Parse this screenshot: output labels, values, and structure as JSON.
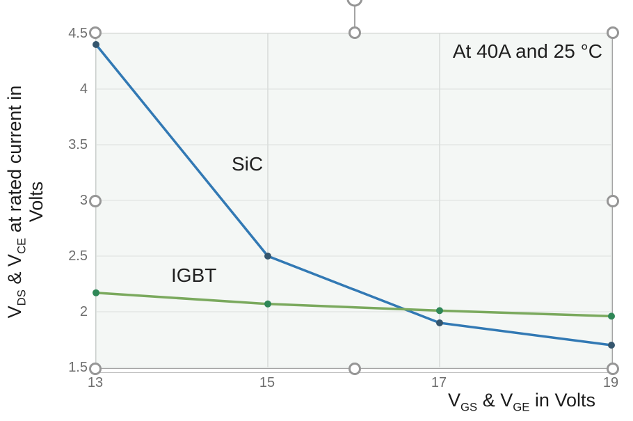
{
  "chart_data": {
    "type": "line",
    "annotation": "At 40A and 25 °C",
    "x": [
      13,
      15,
      17,
      19
    ],
    "series": [
      {
        "name": "SiC",
        "values": [
          4.4,
          2.5,
          1.9,
          1.7
        ],
        "color": "#3279b4",
        "marker_color": "#35566e"
      },
      {
        "name": "IGBT",
        "values": [
          2.17,
          2.07,
          2.01,
          1.96
        ],
        "color": "#7aa95d",
        "marker_color": "#2f8757"
      }
    ],
    "xlim": [
      13,
      19
    ],
    "ylim": [
      1.5,
      4.5
    ],
    "xticks": [
      13,
      15,
      17,
      19
    ],
    "yticks": [
      1.5,
      2,
      2.5,
      3,
      3.5,
      4,
      4.5
    ],
    "xlabel_rich": [
      {
        "t": "V"
      },
      {
        "sub": "GS"
      },
      {
        "t": " & V"
      },
      {
        "sub": "GE"
      },
      {
        "t": " in Volts"
      }
    ],
    "ylabel_rich": [
      {
        "t": "V"
      },
      {
        "sub": "DS"
      },
      {
        "t": " & V"
      },
      {
        "sub": "CE"
      },
      {
        "t": " at rated current in"
      },
      {
        "br": true
      },
      {
        "t": "Volts"
      }
    ],
    "grid": true,
    "legend_position": "none",
    "colors": {
      "plot_background": "#f4f7f5",
      "grid_horizontal": "#e4e7e5",
      "grid_vertical": "#d8dcda",
      "selection_frame": "#a3a3a3",
      "handle_ring": "#969696",
      "tick_text": "#6e6e6e"
    }
  }
}
